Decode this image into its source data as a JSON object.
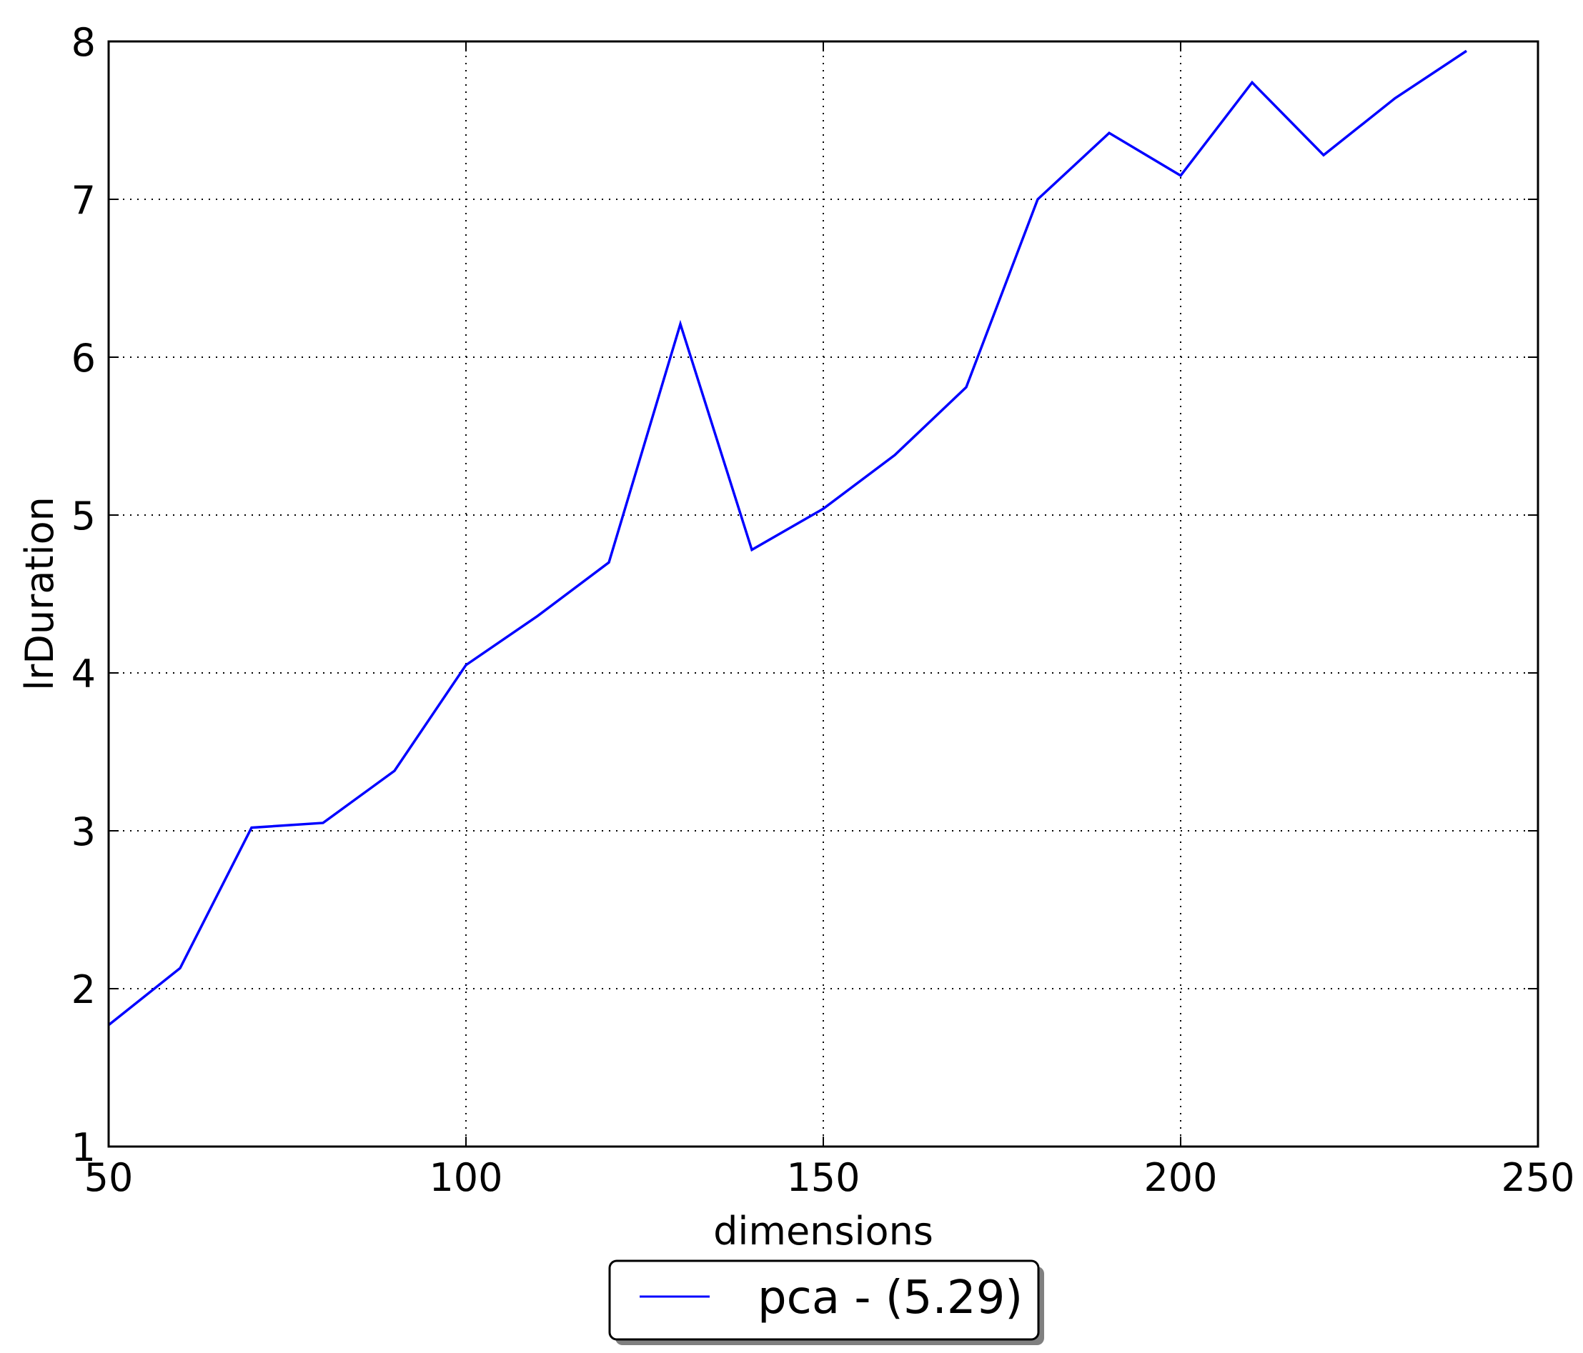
{
  "chart_data": {
    "type": "line",
    "title": "",
    "xlabel": "dimensions",
    "ylabel": "lrDuration",
    "xlim": [
      50,
      250
    ],
    "ylim": [
      1,
      8
    ],
    "xticks": [
      50,
      100,
      150,
      200,
      250
    ],
    "yticks": [
      1,
      2,
      3,
      4,
      5,
      6,
      7,
      8
    ],
    "grid": true,
    "legend_position": "below plot, centered",
    "series": [
      {
        "name": "pca - (5.29)",
        "color": "#0000ff",
        "x": [
          50,
          60,
          70,
          80,
          90,
          100,
          110,
          120,
          130,
          140,
          150,
          160,
          170,
          180,
          190,
          200,
          210,
          220,
          230,
          240
        ],
        "values": [
          1.77,
          2.13,
          3.02,
          3.05,
          3.38,
          4.05,
          4.36,
          4.7,
          6.21,
          4.78,
          5.04,
          5.38,
          5.81,
          7.0,
          7.42,
          7.15,
          7.74,
          7.28,
          7.64,
          7.94
        ]
      }
    ]
  }
}
